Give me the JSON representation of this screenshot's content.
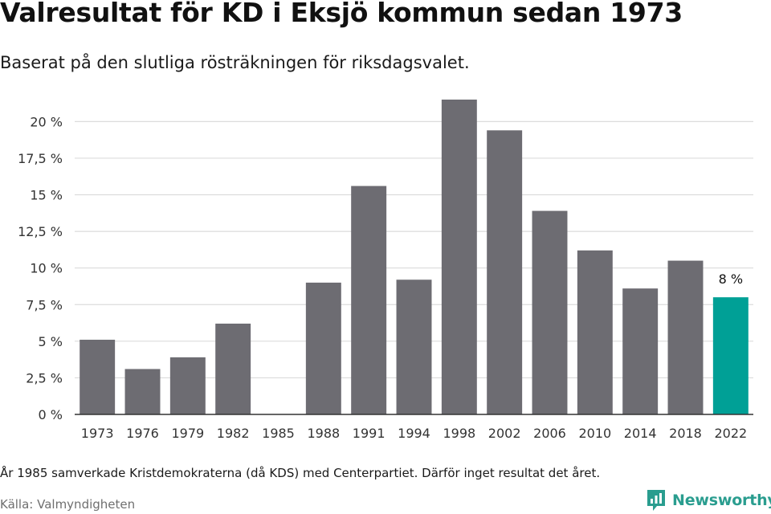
{
  "title": "Valresultat för KD i Eksjö kommun sedan 1973",
  "subtitle": "Baserat på den slutliga rösträkningen för riksdagsvalet.",
  "footnote": "År 1985 samverkade Kristdemokraterna (då KDS) med Centerpartiet. Därför inget resultat det året.",
  "source": "Källa: Valmyndigheten",
  "logo_text": "Newsworthy",
  "colors": {
    "bar": "#6d6c72",
    "highlight": "#00a096",
    "grid": "#dcdcdc",
    "axis": "#333333",
    "brand": "#2a9d8f"
  },
  "chart_data": {
    "type": "bar",
    "categories": [
      "1973",
      "1976",
      "1979",
      "1982",
      "1985",
      "1988",
      "1991",
      "1994",
      "1998",
      "2002",
      "2006",
      "2010",
      "2014",
      "2018",
      "2022"
    ],
    "values": [
      5.1,
      3.1,
      3.9,
      6.2,
      null,
      9.0,
      15.6,
      9.2,
      21.5,
      19.4,
      13.9,
      11.2,
      8.6,
      10.5,
      8.0
    ],
    "highlight_category": "2022",
    "data_labels": [
      {
        "category": "2022",
        "text": "8 %"
      }
    ],
    "yticks": [
      {
        "value": 0,
        "label": "0 %"
      },
      {
        "value": 2.5,
        "label": "2,5 %"
      },
      {
        "value": 5,
        "label": "5 %"
      },
      {
        "value": 7.5,
        "label": "7,5 %"
      },
      {
        "value": 10,
        "label": "10 %"
      },
      {
        "value": 12.5,
        "label": "12,5 %"
      },
      {
        "value": 15,
        "label": "15 %"
      },
      {
        "value": 17.5,
        "label": "17,5 %"
      },
      {
        "value": 20,
        "label": "20 %"
      }
    ],
    "ylim": [
      0,
      21.5
    ],
    "grid": true,
    "xlabel": "",
    "ylabel": ""
  }
}
